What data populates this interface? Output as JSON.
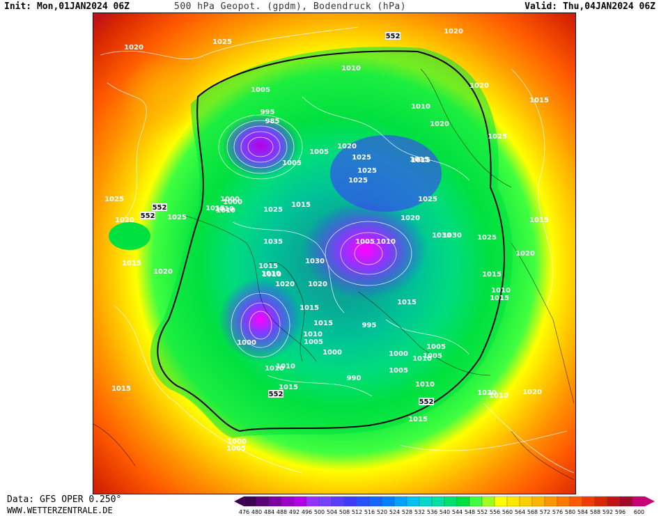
{
  "header": {
    "init": "Init: Mon,01JAN2024 06Z",
    "title": "500 hPa Geopot. (gpdm), Bodendruck (hPa)",
    "valid": "Valid: Thu,04JAN2024 06Z"
  },
  "footer": {
    "data_source": "Data: GFS OPER 0.250°",
    "website": "WWW.WETTERZENTRALE.DE"
  },
  "legend": {
    "values": [
      "476",
      "480",
      "484",
      "488",
      "492",
      "496",
      "500",
      "504",
      "508",
      "512",
      "516",
      "520",
      "524",
      "528",
      "532",
      "536",
      "540",
      "544",
      "548",
      "552",
      "556",
      "560",
      "564",
      "568",
      "572",
      "576",
      "580",
      "584",
      "588",
      "592",
      "596",
      "600"
    ],
    "colors": [
      "#3c0050",
      "#5a0078",
      "#7a00a0",
      "#9a00c8",
      "#b400e6",
      "#9632ff",
      "#7840ff",
      "#5a3cff",
      "#3c3cff",
      "#2850ff",
      "#1464ff",
      "#0080ff",
      "#00a0ff",
      "#00c0f0",
      "#00d8c8",
      "#00e0a0",
      "#00e070",
      "#00e040",
      "#40ff40",
      "#a0ff20",
      "#ffff00",
      "#ffe800",
      "#ffd000",
      "#ffb400",
      "#ff9600",
      "#ff7800",
      "#ff5a00",
      "#f03c00",
      "#d82800",
      "#c01414",
      "#a00a28",
      "#c80078"
    ]
  },
  "map_labels": {
    "isobars": [
      {
        "text": "1020"
      },
      {
        "text": "1025"
      },
      {
        "text": "1025"
      },
      {
        "text": "1020"
      },
      {
        "text": "1020"
      },
      {
        "text": "1015"
      },
      {
        "text": "1025"
      },
      {
        "text": "1015"
      },
      {
        "text": "1020"
      },
      {
        "text": "1025"
      },
      {
        "text": "1020"
      },
      {
        "text": "1015"
      },
      {
        "text": "1020"
      },
      {
        "text": "1025"
      },
      {
        "text": "1015"
      },
      {
        "text": "1020"
      },
      {
        "text": "1015"
      },
      {
        "text": "1020"
      },
      {
        "text": "1020"
      },
      {
        "text": "1005"
      },
      {
        "text": "1000"
      },
      {
        "text": "1005"
      },
      {
        "text": "1015"
      },
      {
        "text": "1010"
      },
      {
        "text": "1030"
      },
      {
        "text": "1025"
      },
      {
        "text": "1020"
      },
      {
        "text": "1025"
      },
      {
        "text": "1015"
      },
      {
        "text": "1015"
      },
      {
        "text": "1010"
      },
      {
        "text": "1010"
      },
      {
        "text": "1015"
      },
      {
        "text": "1010"
      },
      {
        "text": "1015"
      },
      {
        "text": "1030"
      },
      {
        "text": "1025"
      },
      {
        "text": "1010"
      },
      {
        "text": "1000"
      },
      {
        "text": "1020"
      },
      {
        "text": "1015"
      },
      {
        "text": "1005"
      },
      {
        "text": "1010"
      },
      {
        "text": "1030"
      },
      {
        "text": "1005"
      },
      {
        "text": "1010"
      },
      {
        "text": "1015"
      },
      {
        "text": "995"
      },
      {
        "text": "985"
      },
      {
        "text": "1005"
      },
      {
        "text": "1020"
      },
      {
        "text": "1025"
      },
      {
        "text": "1010"
      },
      {
        "text": "1000"
      },
      {
        "text": "1010"
      },
      {
        "text": "1025"
      },
      {
        "text": "1035"
      },
      {
        "text": "1015"
      },
      {
        "text": "1010"
      },
      {
        "text": "1005"
      },
      {
        "text": "1020"
      },
      {
        "text": "1010"
      },
      {
        "text": "1015"
      },
      {
        "text": "1010"
      },
      {
        "text": "995"
      },
      {
        "text": "1015"
      },
      {
        "text": "1000"
      },
      {
        "text": "1005"
      },
      {
        "text": "990"
      },
      {
        "text": "1000"
      },
      {
        "text": "1000"
      },
      {
        "text": "1005"
      },
      {
        "text": "1010"
      },
      {
        "text": "1005"
      },
      {
        "text": "1010"
      },
      {
        "text": "1015"
      }
    ],
    "contour_552": [
      {
        "text": "552"
      },
      {
        "text": "552"
      },
      {
        "text": "552"
      },
      {
        "text": "552"
      },
      {
        "text": "552"
      }
    ]
  }
}
